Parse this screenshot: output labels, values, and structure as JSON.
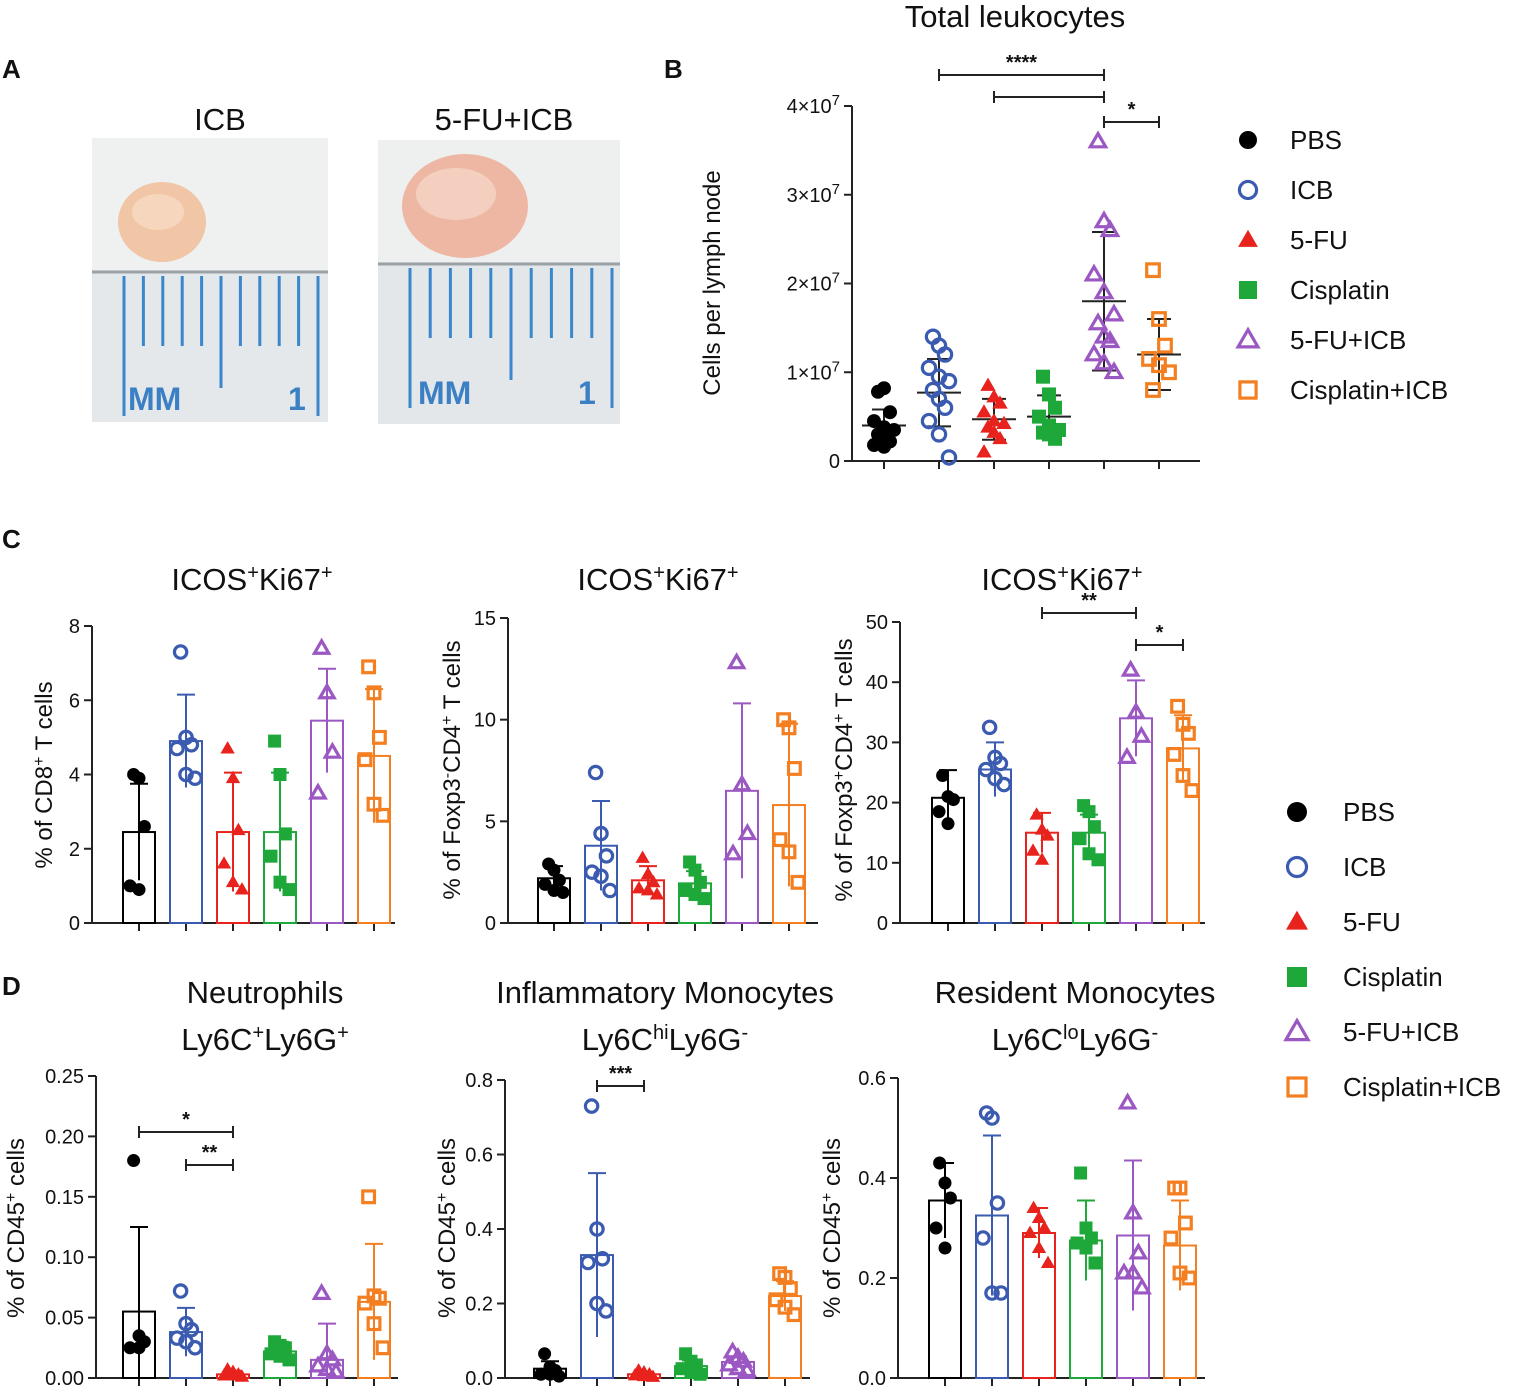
{
  "colors": {
    "PBS": "#000000",
    "ICB": "#3a5bb0",
    "5-FU": "#e8221c",
    "Cisplatin": "#1ea83a",
    "5-FU+ICB": "#9b57c2",
    "Cisplatin+ICB": "#f47f20"
  },
  "groups": [
    "PBS",
    "ICB",
    "5-FU",
    "Cisplatin",
    "5-FU+ICB",
    "Cisplatin+ICB"
  ],
  "panel_labels": {
    "a": "A",
    "b": "B",
    "c": "C",
    "d": "D"
  },
  "photos": {
    "left_title": "ICB",
    "right_title": "5-FU+ICB",
    "ruler_unit": "MM",
    "ruler_number": "1"
  },
  "legends": {
    "top": [
      "PBS",
      "ICB",
      "5-FU",
      "Cisplatin",
      "5-FU+ICB",
      "Cisplatin+ICB"
    ],
    "bottom": [
      "PBS",
      "ICB",
      "5-FU",
      "Cisplatin",
      "5-FU+ICB",
      "Cisplatin+ICB"
    ]
  },
  "chart_data": [
    {
      "id": "B",
      "type": "scatter",
      "title": "Total leukocytes",
      "ylabel": "Cells per lymph node",
      "ylim": [
        0,
        40000000
      ],
      "yticks": [
        0,
        10000000,
        20000000,
        30000000,
        40000000
      ],
      "ytick_labels": [
        "0",
        "1×10",
        "2×10",
        "3×10",
        "4×10"
      ],
      "ytick_sup": [
        "",
        "7",
        "7",
        "7",
        "7"
      ],
      "means": [
        4000000,
        7700000,
        4700000,
        5000000,
        18000000,
        12000000
      ],
      "sd": [
        1800000,
        3800000,
        2300000,
        2400000,
        7800000,
        4000000
      ],
      "points": [
        [
          7800000,
          8200000,
          5500000,
          4500000,
          3800000,
          3500000,
          3000000,
          2600000,
          2200000,
          1800000,
          1600000
        ],
        [
          14000000,
          13000000,
          12000000,
          10500000,
          9500000,
          9000000,
          8000000,
          7000000,
          6000000,
          4500000,
          3000000,
          400000
        ],
        [
          8500000,
          7200000,
          6500000,
          5500000,
          4500000,
          4200000,
          3800000,
          3200000,
          2500000,
          1000000
        ],
        [
          9500000,
          7500000,
          6000000,
          5000000,
          4000000,
          3500000,
          3200000,
          3000000,
          2500000
        ],
        [
          36000000,
          27000000,
          26000000,
          21000000,
          19000000,
          16500000,
          15500000,
          14000000,
          13500000,
          12000000,
          11000000,
          10000000
        ],
        [
          21500000,
          16000000,
          13000000,
          11500000,
          10800000,
          10000000,
          8000000
        ]
      ],
      "significance": [
        {
          "from": 1,
          "to": 4,
          "label": "****"
        },
        {
          "from": 2,
          "to": 4,
          "label": ""
        },
        {
          "from": 4,
          "to": 5,
          "label": "*"
        }
      ]
    },
    {
      "id": "C1",
      "type": "bar",
      "title_main": "ICOS",
      "title_mid": "Ki67",
      "ylabel_prefix": "% of CD8",
      "ylabel_suffix": " T cells",
      "ylim": [
        0,
        8
      ],
      "yticks": [
        0,
        2,
        4,
        6,
        8
      ],
      "means": [
        2.45,
        4.9,
        2.45,
        2.45,
        5.45,
        4.5
      ],
      "sd": [
        1.3,
        1.25,
        1.6,
        1.6,
        1.4,
        1.8
      ],
      "points": [
        [
          4.0,
          3.9,
          2.6,
          1.0,
          0.9
        ],
        [
          7.3,
          5.0,
          4.8,
          4.7,
          4.0,
          3.9
        ],
        [
          4.7,
          3.9,
          2.5,
          1.6,
          1.1,
          0.9
        ],
        [
          4.9,
          4.0,
          2.4,
          1.8,
          1.1,
          0.9
        ],
        [
          7.4,
          6.2,
          4.6,
          3.5
        ],
        [
          6.9,
          6.2,
          5.0,
          4.4,
          3.2,
          2.9
        ]
      ],
      "significance": []
    },
    {
      "id": "C2",
      "type": "bar",
      "title_main": "ICOS",
      "title_mid": "Ki67",
      "ylabel_prefix": "% of Foxp3",
      "ylabel_mid": "CD4",
      "ylabel_suffix": " T cells",
      "ylim": [
        0,
        15
      ],
      "yticks": [
        0,
        5,
        10,
        15
      ],
      "means": [
        2.2,
        3.8,
        2.1,
        1.95,
        6.5,
        5.8
      ],
      "sd": [
        0.6,
        2.2,
        0.7,
        0.6,
        4.3,
        4.0
      ],
      "points": [
        [
          2.9,
          2.6,
          2.1,
          1.9,
          1.6,
          1.5
        ],
        [
          7.4,
          4.4,
          3.3,
          2.5,
          2.3,
          1.6
        ],
        [
          3.2,
          2.4,
          2.0,
          1.7,
          1.6,
          1.4
        ],
        [
          3.0,
          2.6,
          2.0,
          1.6,
          1.4,
          1.2
        ],
        [
          12.8,
          6.8,
          4.4,
          3.4
        ],
        [
          10.0,
          9.6,
          7.6,
          4.1,
          3.5,
          2.0
        ]
      ],
      "significance": []
    },
    {
      "id": "C3",
      "type": "bar",
      "title_main": "ICOS",
      "title_mid": "Ki67",
      "ylabel_prefix": "% of Foxp3",
      "ylabel_mid": "CD4",
      "ylabel_suffix": " T cells",
      "ylim": [
        0,
        50
      ],
      "yticks": [
        0,
        10,
        20,
        30,
        40,
        50
      ],
      "means": [
        20.8,
        25.5,
        15.0,
        15.0,
        34.0,
        29.0
      ],
      "sd": [
        4.6,
        4.5,
        3.3,
        3.0,
        6.3,
        5.5
      ],
      "points": [
        [
          24.5,
          21.0,
          20.5,
          18.5,
          16.5
        ],
        [
          32.5,
          27.5,
          26.5,
          25.5,
          24.0,
          23.0
        ],
        [
          18.0,
          15.5,
          14.5,
          12.0,
          10.5
        ],
        [
          19.5,
          18.5,
          16.0,
          14.0,
          11.5,
          10.5
        ],
        [
          42.0,
          35.0,
          31.0,
          27.5
        ],
        [
          36.0,
          33.0,
          31.5,
          28.0,
          24.5,
          22.0
        ]
      ],
      "significance": [
        {
          "from": 2,
          "to": 4,
          "label": "**"
        },
        {
          "from": 4,
          "to": 5,
          "label": "*"
        }
      ]
    },
    {
      "id": "D1",
      "type": "bar",
      "title_line1": "Neutrophils",
      "title_line2": "Ly6C",
      "title_line2_b": "Ly6G",
      "title_sup1": "+",
      "title_sup2": "+",
      "ylabel_prefix": "% of CD45",
      "ylabel_suffix": " cells",
      "ylim": [
        0,
        0.25
      ],
      "yticks": [
        0,
        0.05,
        0.1,
        0.15,
        0.2,
        0.25
      ],
      "ytick_labels": [
        "0.00",
        "0.05",
        "0.10",
        "0.15",
        "0.20",
        "0.25"
      ],
      "means": [
        0.055,
        0.038,
        0.003,
        0.022,
        0.015,
        0.063
      ],
      "sd": [
        0.07,
        0.02,
        0.003,
        0.008,
        0.03,
        0.048
      ],
      "points": [
        [
          0.18,
          0.035,
          0.03,
          0.025,
          0.025
        ],
        [
          0.072,
          0.045,
          0.04,
          0.033,
          0.03,
          0.025
        ],
        [
          0.007,
          0.005,
          0.003,
          0.002,
          0.002,
          0.001
        ],
        [
          0.03,
          0.027,
          0.025,
          0.02,
          0.018,
          0.015
        ],
        [
          0.07,
          0.02,
          0.015,
          0.01,
          0.007,
          0.005
        ],
        [
          0.15,
          0.068,
          0.066,
          0.062,
          0.045,
          0.025
        ]
      ],
      "significance": [
        {
          "from": 0,
          "to": 2,
          "label": "*"
        },
        {
          "from": 1,
          "to": 2,
          "label": "**"
        }
      ]
    },
    {
      "id": "D2",
      "type": "bar",
      "title_line1": "Inflammatory Monocytes",
      "title_line2": "Ly6C",
      "title_line2_b": "Ly6G",
      "title_sup1": "hi",
      "title_sup2": "-",
      "ylabel_prefix": "% of CD45",
      "ylabel_suffix": " cells",
      "ylim": [
        0,
        0.8
      ],
      "yticks": [
        0,
        0.2,
        0.4,
        0.6,
        0.8
      ],
      "ytick_labels": [
        "0.0",
        "0.2",
        "0.4",
        "0.6",
        "0.8"
      ],
      "means": [
        0.025,
        0.33,
        0.01,
        0.032,
        0.043,
        0.22
      ],
      "sd": [
        0.02,
        0.22,
        0.006,
        0.015,
        0.015,
        0.04
      ],
      "points": [
        [
          0.065,
          0.03,
          0.02,
          0.01,
          0.01,
          0.005
        ],
        [
          0.73,
          0.4,
          0.32,
          0.31,
          0.2,
          0.18
        ],
        [
          0.02,
          0.015,
          0.01,
          0.007,
          0.005,
          0.003
        ],
        [
          0.065,
          0.045,
          0.035,
          0.025,
          0.015,
          0.01
        ],
        [
          0.07,
          0.055,
          0.045,
          0.035,
          0.025,
          0.02
        ],
        [
          0.28,
          0.27,
          0.24,
          0.21,
          0.19,
          0.17
        ]
      ],
      "significance": [
        {
          "from": 1,
          "to": 2,
          "label": "***"
        }
      ]
    },
    {
      "id": "D3",
      "type": "bar",
      "title_line1": "Resident Monocytes",
      "title_line2": "Ly6C",
      "title_line2_b": "Ly6G",
      "title_sup1": "lo",
      "title_sup2": "-",
      "ylabel_prefix": "% of CD45",
      "ylabel_suffix": " cells",
      "ylim": [
        0,
        0.6
      ],
      "yticks": [
        0,
        0.2,
        0.4,
        0.6
      ],
      "ytick_labels": [
        "0.0",
        "0.2",
        "0.4",
        "0.6"
      ],
      "means": [
        0.355,
        0.325,
        0.29,
        0.275,
        0.285,
        0.265
      ],
      "sd": [
        0.075,
        0.16,
        0.05,
        0.08,
        0.15,
        0.09
      ],
      "points": [
        [
          0.43,
          0.39,
          0.36,
          0.3,
          0.26
        ],
        [
          0.53,
          0.52,
          0.35,
          0.28,
          0.17,
          0.17
        ],
        [
          0.34,
          0.32,
          0.3,
          0.29,
          0.26,
          0.23
        ],
        [
          0.41,
          0.3,
          0.28,
          0.27,
          0.26,
          0.23
        ],
        [
          0.55,
          0.33,
          0.25,
          0.21,
          0.21,
          0.18
        ],
        [
          0.38,
          0.38,
          0.31,
          0.28,
          0.21,
          0.2
        ]
      ],
      "significance": []
    }
  ]
}
